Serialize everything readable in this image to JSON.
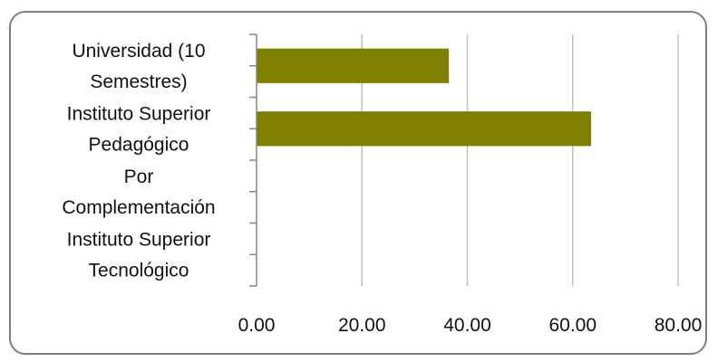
{
  "chart_data": {
    "type": "bar",
    "orientation": "horizontal",
    "categories": [
      [
        "Universidad (10",
        "Semestres)"
      ],
      [
        "Instituto Superior",
        "Pedagógico"
      ],
      [
        "Por",
        "Complementación"
      ],
      [
        "Instituto Superior",
        "Tecnológico"
      ]
    ],
    "values": [
      36.5,
      63.5,
      0,
      0
    ],
    "xticks": [
      "0.00",
      "20.00",
      "40.00",
      "60.00",
      "80.00"
    ],
    "xlim": [
      0,
      80
    ],
    "grid": true,
    "bar_color": "#808000",
    "grid_color": "#c0c0c0",
    "legend": "none"
  }
}
